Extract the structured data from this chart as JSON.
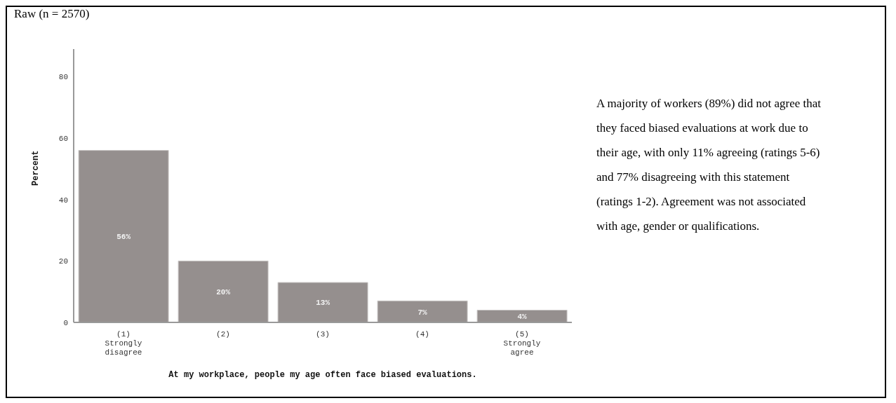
{
  "chart_data": {
    "type": "bar",
    "title": "Raw (n = 2570)",
    "categories": [
      "(1)\nStrongly\ndisagree",
      "(2)",
      "(3)",
      "(4)",
      "(5)\nStrongly\nagree"
    ],
    "values": [
      56,
      20,
      13,
      7,
      4
    ],
    "value_labels": [
      "56%",
      "20%",
      "13%",
      "7%",
      "4%"
    ],
    "color": "#958f8e",
    "ylabel": "Percent",
    "xlabel": "At my workplace, people my age often face biased evaluations.",
    "ylim": [
      0,
      89
    ],
    "yticks": [
      0,
      20,
      40,
      60,
      80
    ],
    "grid": false,
    "legend": false,
    "annotations": [
      "A majority of workers (89%) did not agree that they faced biased evaluations at work due to their age, with only 11% agreeing (ratings 5-6) and 77% disagreeing with this statement (ratings 1-2). Agreement was not associated with age, gender or qualifications."
    ]
  }
}
